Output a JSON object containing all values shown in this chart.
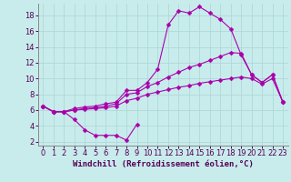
{
  "title": "",
  "xlabel": "Windchill (Refroidissement éolien,°C)",
  "bg_color": "#c8ecec",
  "grid_color": "#b0d8d8",
  "line_color": "#aa00aa",
  "xlim": [
    -0.5,
    23.5
  ],
  "ylim": [
    1.5,
    19.5
  ],
  "xticks": [
    0,
    1,
    2,
    3,
    4,
    5,
    6,
    7,
    8,
    9,
    10,
    11,
    12,
    13,
    14,
    15,
    16,
    17,
    18,
    19,
    20,
    21,
    22,
    23
  ],
  "yticks": [
    2,
    4,
    6,
    8,
    10,
    12,
    14,
    16,
    18
  ],
  "series": [
    {
      "x": [
        0,
        1,
        2,
        3,
        4,
        5,
        6,
        7,
        8,
        9
      ],
      "y": [
        6.5,
        5.8,
        5.8,
        4.8,
        3.5,
        2.8,
        2.8,
        2.8,
        2.2,
        4.2
      ]
    },
    {
      "x": [
        0,
        1,
        2,
        3,
        4,
        5,
        6,
        7,
        8,
        9,
        10,
        11,
        12,
        13,
        14,
        15,
        16,
        17,
        18,
        19,
        20,
        21,
        22,
        23
      ],
      "y": [
        6.5,
        5.8,
        5.8,
        6.2,
        6.4,
        6.5,
        6.8,
        7.0,
        8.5,
        8.5,
        9.5,
        11.2,
        16.8,
        18.6,
        18.3,
        19.1,
        18.3,
        17.5,
        16.3,
        13.0,
        10.5,
        9.5,
        10.5,
        7.0
      ]
    },
    {
      "x": [
        0,
        1,
        2,
        3,
        4,
        5,
        6,
        7,
        8,
        9,
        10,
        11,
        12,
        13,
        14,
        15,
        16,
        17,
        18,
        19,
        20,
        21,
        22,
        23
      ],
      "y": [
        6.5,
        5.8,
        5.8,
        6.0,
        6.2,
        6.3,
        6.5,
        6.8,
        8.0,
        8.2,
        9.0,
        9.5,
        10.2,
        10.8,
        11.4,
        11.8,
        12.3,
        12.8,
        13.3,
        13.2,
        10.5,
        9.5,
        10.5,
        7.0
      ]
    },
    {
      "x": [
        0,
        1,
        2,
        3,
        4,
        5,
        6,
        7,
        8,
        9,
        10,
        11,
        12,
        13,
        14,
        15,
        16,
        17,
        18,
        19,
        20,
        21,
        22,
        23
      ],
      "y": [
        6.5,
        5.8,
        5.8,
        6.0,
        6.1,
        6.2,
        6.3,
        6.5,
        7.2,
        7.5,
        8.0,
        8.3,
        8.6,
        8.9,
        9.1,
        9.4,
        9.6,
        9.8,
        10.0,
        10.2,
        10.0,
        9.3,
        10.0,
        7.0
      ]
    }
  ],
  "xlabel_fontsize": 6.5,
  "tick_fontsize": 6,
  "marker_size": 2.5,
  "line_width": 0.8
}
